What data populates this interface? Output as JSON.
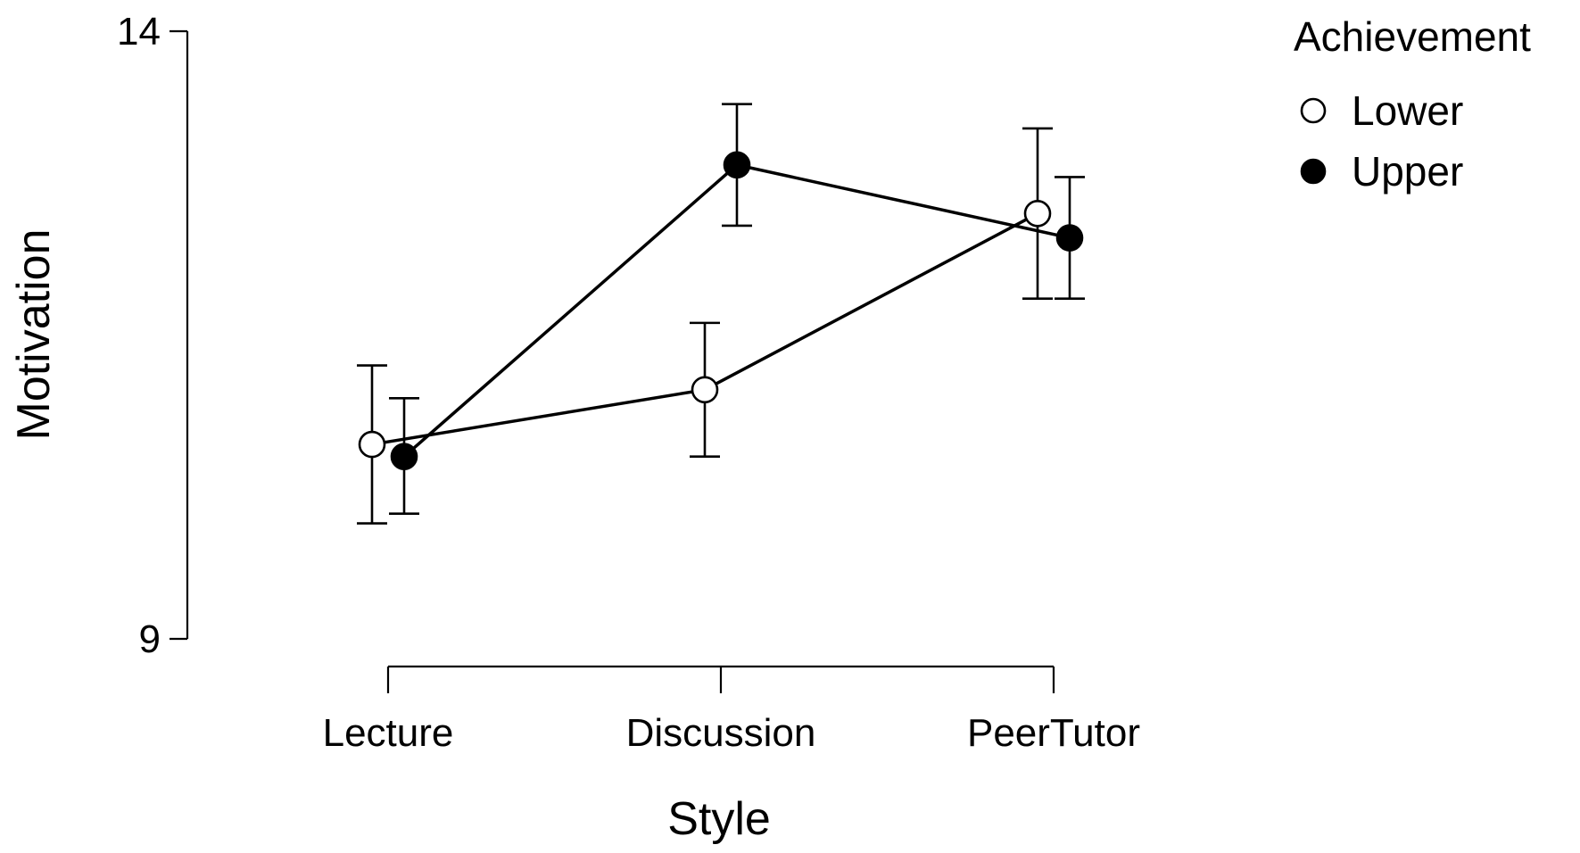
{
  "chart_data": {
    "type": "line",
    "xlabel": "Style",
    "ylabel": "Motivation",
    "categories": [
      "Lecture",
      "Discussion",
      "PeerTutor"
    ],
    "y_ticks": [
      9,
      14
    ],
    "ylim": [
      9,
      14
    ],
    "legend": {
      "title": "Achievement",
      "placement": "top-right"
    },
    "series": [
      {
        "name": "Lower",
        "marker": "open-circle",
        "fill": "#ffffff",
        "values": [
          10.6,
          11.05,
          12.5
        ],
        "error_low": [
          9.95,
          10.5,
          11.8
        ],
        "error_high": [
          11.25,
          11.6,
          13.2
        ]
      },
      {
        "name": "Upper",
        "marker": "filled-circle",
        "fill": "#000000",
        "values": [
          10.5,
          12.9,
          12.3
        ],
        "error_low": [
          10.03,
          12.4,
          11.8
        ],
        "error_high": [
          10.98,
          13.4,
          12.8
        ]
      }
    ]
  }
}
